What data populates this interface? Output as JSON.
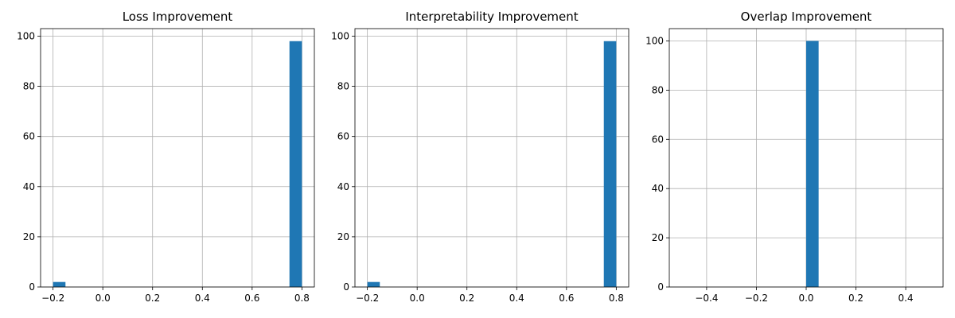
{
  "chart_data": [
    {
      "type": "bar",
      "title": "Loss Improvement",
      "xlabel": "",
      "ylabel": "",
      "xlim": [
        -0.25,
        0.85
      ],
      "ylim": [
        0,
        103
      ],
      "xticks": [
        -0.2,
        0.0,
        0.2,
        0.4,
        0.6,
        0.8
      ],
      "xtick_labels": [
        "−0.2",
        "0.0",
        "0.2",
        "0.4",
        "0.6",
        "0.8"
      ],
      "yticks": [
        0,
        20,
        40,
        60,
        80,
        100
      ],
      "ytick_labels": [
        "0",
        "20",
        "40",
        "60",
        "80",
        "100"
      ],
      "grid": true,
      "bins": [
        {
          "x0": -0.2,
          "x1": -0.15,
          "count": 2
        },
        {
          "x0": 0.75,
          "x1": 0.8,
          "count": 98
        }
      ]
    },
    {
      "type": "bar",
      "title": "Interpretability Improvement",
      "xlabel": "",
      "ylabel": "",
      "xlim": [
        -0.25,
        0.85
      ],
      "ylim": [
        0,
        103
      ],
      "xticks": [
        -0.2,
        0.0,
        0.2,
        0.4,
        0.6,
        0.8
      ],
      "xtick_labels": [
        "−0.2",
        "0.0",
        "0.2",
        "0.4",
        "0.6",
        "0.8"
      ],
      "yticks": [
        0,
        20,
        40,
        60,
        80,
        100
      ],
      "ytick_labels": [
        "0",
        "20",
        "40",
        "60",
        "80",
        "100"
      ],
      "grid": true,
      "bins": [
        {
          "x0": -0.2,
          "x1": -0.15,
          "count": 2
        },
        {
          "x0": 0.75,
          "x1": 0.8,
          "count": 98
        }
      ]
    },
    {
      "type": "bar",
      "title": "Overlap Improvement",
      "xlabel": "",
      "ylabel": "",
      "xlim": [
        -0.55,
        0.55
      ],
      "ylim": [
        0,
        105
      ],
      "xticks": [
        -0.4,
        -0.2,
        0.0,
        0.2,
        0.4
      ],
      "xtick_labels": [
        "−0.4",
        "−0.2",
        "0.0",
        "0.2",
        "0.4"
      ],
      "yticks": [
        0,
        20,
        40,
        60,
        80,
        100
      ],
      "ytick_labels": [
        "0",
        "20",
        "40",
        "60",
        "80",
        "100"
      ],
      "grid": true,
      "bins": [
        {
          "x0": 0.0,
          "x1": 0.05,
          "count": 100
        }
      ]
    }
  ],
  "colors": {
    "bar": "#1f77b4"
  }
}
